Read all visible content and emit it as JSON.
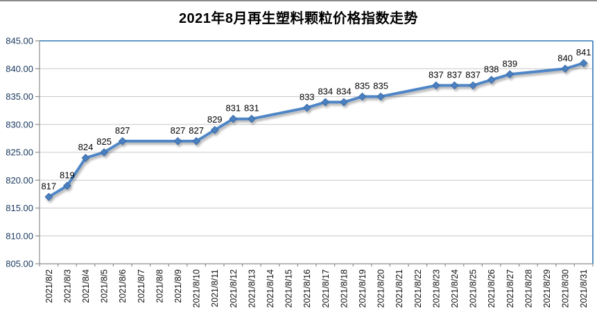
{
  "chart_data": {
    "type": "line",
    "title": "2021年8月再生塑料颗粒价格指数走势",
    "xlabel": "",
    "ylabel": "",
    "ylim": [
      805,
      845
    ],
    "ytick_step": 5,
    "ytick_labels": [
      "845.00",
      "840.00",
      "835.00",
      "830.00",
      "825.00",
      "820.00",
      "815.00",
      "810.00",
      "805.00"
    ],
    "grid": true,
    "legend": "none",
    "categories": [
      "2021/8/2",
      "2021/8/3",
      "2021/8/4",
      "2021/8/5",
      "2021/8/6",
      "2021/8/7",
      "2021/8/8",
      "2021/8/9",
      "2021/8/10",
      "2021/8/11",
      "2021/8/12",
      "2021/8/13",
      "2021/8/14",
      "2021/8/15",
      "2021/8/16",
      "2021/8/17",
      "2021/8/18",
      "2021/8/19",
      "2021/8/20",
      "2021/8/21",
      "2021/8/22",
      "2021/8/23",
      "2021/8/24",
      "2021/8/25",
      "2021/8/26",
      "2021/8/27",
      "2021/8/28",
      "2021/8/29",
      "2021/8/30",
      "2021/8/31"
    ],
    "points": [
      {
        "date": "2021/8/2",
        "value": 817
      },
      {
        "date": "2021/8/3",
        "value": 819
      },
      {
        "date": "2021/8/4",
        "value": 824
      },
      {
        "date": "2021/8/5",
        "value": 825
      },
      {
        "date": "2021/8/6",
        "value": 827
      },
      {
        "date": "2021/8/9",
        "value": 827
      },
      {
        "date": "2021/8/10",
        "value": 827
      },
      {
        "date": "2021/8/11",
        "value": 829
      },
      {
        "date": "2021/8/12",
        "value": 831
      },
      {
        "date": "2021/8/13",
        "value": 831
      },
      {
        "date": "2021/8/16",
        "value": 833
      },
      {
        "date": "2021/8/17",
        "value": 834
      },
      {
        "date": "2021/8/18",
        "value": 834
      },
      {
        "date": "2021/8/19",
        "value": 835
      },
      {
        "date": "2021/8/20",
        "value": 835
      },
      {
        "date": "2021/8/23",
        "value": 837
      },
      {
        "date": "2021/8/24",
        "value": 837
      },
      {
        "date": "2021/8/25",
        "value": 837
      },
      {
        "date": "2021/8/26",
        "value": 838
      },
      {
        "date": "2021/8/27",
        "value": 839
      },
      {
        "date": "2021/8/30",
        "value": 840
      },
      {
        "date": "2021/8/31",
        "value": 841
      }
    ]
  },
  "colors": {
    "line": "#4f86c6",
    "marker_fill": "#4a80c0",
    "marker_stroke": "#3d6ca8",
    "plot_border": "#2e75b6",
    "gridline": "#c8c8c8",
    "axis": "#8c8c8c",
    "y_label": "#17375e",
    "x_label": "#111111",
    "data_label": "#000000",
    "title": "#000000"
  }
}
